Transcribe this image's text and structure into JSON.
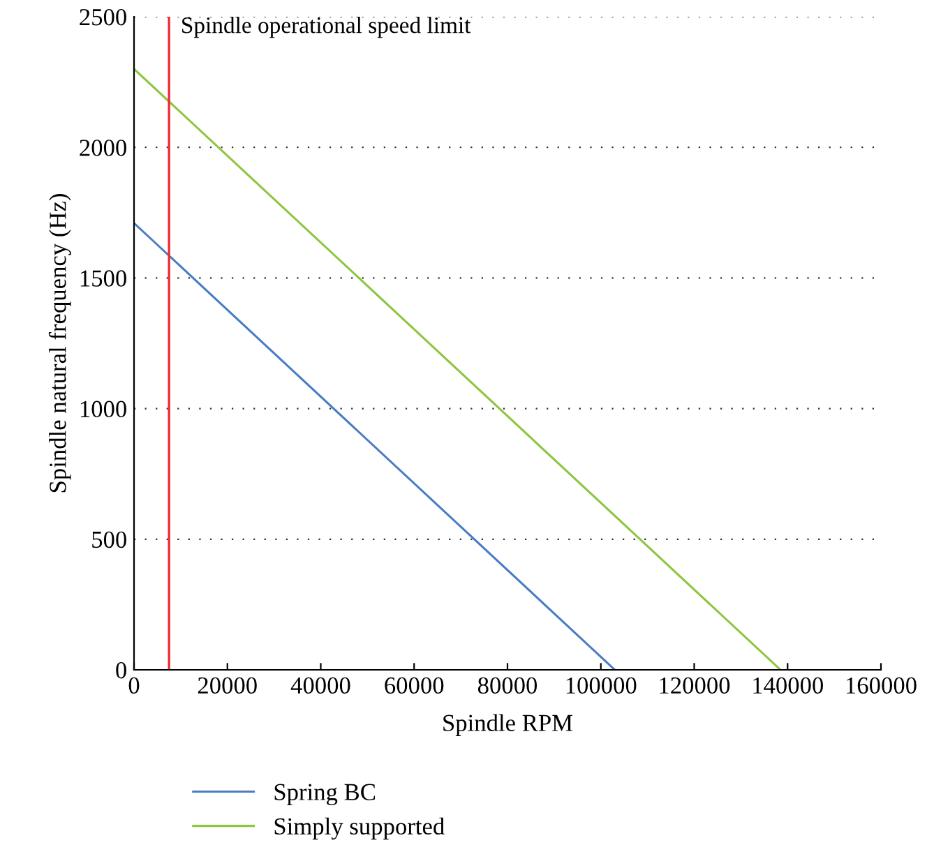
{
  "chart_data": {
    "type": "line",
    "xlabel": "Spindle RPM",
    "ylabel": "Spindle natural frequency (Hz)",
    "series": [
      {
        "name": "Spring BC",
        "color": "#4a7cc4",
        "x": [
          0,
          103000
        ],
        "values": [
          1710,
          0
        ]
      },
      {
        "name": "Simply supported",
        "color": "#8cc63f",
        "x": [
          0,
          138500
        ],
        "values": [
          2300,
          0
        ]
      }
    ],
    "ref_lines": [
      {
        "axis": "x",
        "value": 7500,
        "label": "Spindle operational speed limit",
        "color": "#ee2a35"
      }
    ],
    "xlim": [
      0,
      160000
    ],
    "xticks": [
      0,
      20000,
      40000,
      60000,
      80000,
      100000,
      120000,
      140000,
      160000
    ],
    "ylim": [
      0,
      2500
    ],
    "yticks": [
      0,
      500,
      1000,
      1500,
      2000,
      2500
    ],
    "grid": "y",
    "legend": "bottom",
    "marker": "none",
    "line_style": "solid"
  }
}
